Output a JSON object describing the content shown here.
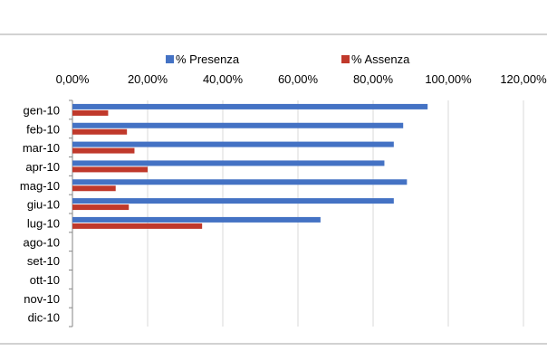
{
  "chart_data": {
    "type": "bar",
    "orientation": "horizontal",
    "legend_position": "top",
    "grid": true,
    "xlim": [
      0,
      120
    ],
    "x_ticks": [
      "0,00%",
      "20,00%",
      "40,00%",
      "60,00%",
      "80,00%",
      "100,00%",
      "120,00%"
    ],
    "x_axis_position": "top",
    "categories": [
      "gen-10",
      "feb-10",
      "mar-10",
      "apr-10",
      "mag-10",
      "giu-10",
      "lug-10",
      "ago-10",
      "set-10",
      "ott-10",
      "nov-10",
      "dic-10"
    ],
    "series": [
      {
        "name": "% Presenza",
        "color": "#4472C4",
        "values": [
          94.5,
          88,
          85.5,
          83,
          89,
          85.5,
          66,
          null,
          null,
          null,
          null,
          null
        ]
      },
      {
        "name": "% Assenza",
        "color": "#C0392B",
        "values": [
          9.5,
          14.5,
          16.5,
          20,
          11.5,
          15,
          34.5,
          null,
          null,
          null,
          null,
          null
        ]
      }
    ]
  }
}
